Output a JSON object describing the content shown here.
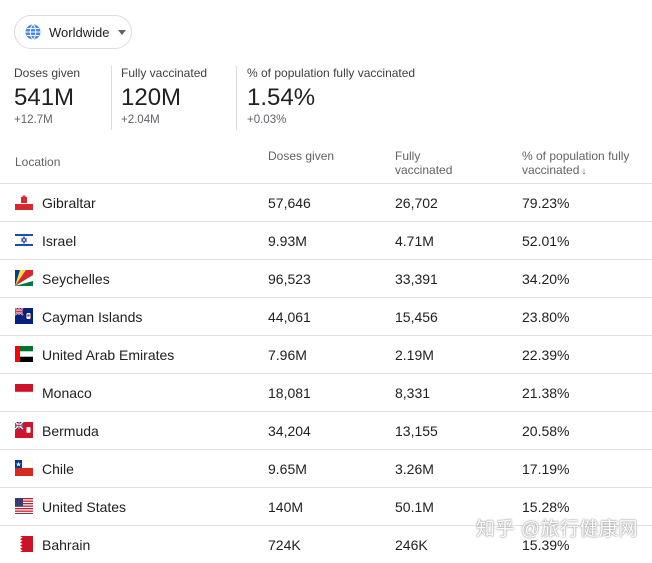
{
  "region_selector": {
    "label": "Worldwide",
    "icon": "globe-icon"
  },
  "stats": [
    {
      "label": "Doses given",
      "value": "541M",
      "change": "+12.7M"
    },
    {
      "label": "Fully vaccinated",
      "value": "120M",
      "change": "+2.04M"
    },
    {
      "label": "% of population fully vaccinated",
      "value": "1.54%",
      "change": "+0.03%"
    }
  ],
  "table": {
    "headers": {
      "location": "Location",
      "doses_given": "Doses given",
      "fully_vaccinated": "Fully vaccinated",
      "pct_fully_vaccinated": "% of population fully vaccinated",
      "sort_indicator": "↓"
    },
    "rows": [
      {
        "location": "Gibraltar",
        "flag": "gibraltar-flag-icon",
        "doses": "57,646",
        "fully": "26,702",
        "pct": "79.23%"
      },
      {
        "location": "Israel",
        "flag": "israel-flag-icon",
        "doses": "9.93M",
        "fully": "4.71M",
        "pct": "52.01%"
      },
      {
        "location": "Seychelles",
        "flag": "seychelles-flag-icon",
        "doses": "96,523",
        "fully": "33,391",
        "pct": "34.20%"
      },
      {
        "location": "Cayman Islands",
        "flag": "cayman-islands-flag-icon",
        "doses": "44,061",
        "fully": "15,456",
        "pct": "23.80%"
      },
      {
        "location": "United Arab Emirates",
        "flag": "uae-flag-icon",
        "doses": "7.96M",
        "fully": "2.19M",
        "pct": "22.39%"
      },
      {
        "location": "Monaco",
        "flag": "monaco-flag-icon",
        "doses": "18,081",
        "fully": "8,331",
        "pct": "21.38%"
      },
      {
        "location": "Bermuda",
        "flag": "bermuda-flag-icon",
        "doses": "34,204",
        "fully": "13,155",
        "pct": "20.58%"
      },
      {
        "location": "Chile",
        "flag": "chile-flag-icon",
        "doses": "9.65M",
        "fully": "3.26M",
        "pct": "17.19%"
      },
      {
        "location": "United States",
        "flag": "us-flag-icon",
        "doses": "140M",
        "fully": "50.1M",
        "pct": "15.28%"
      },
      {
        "location": "Bahrain",
        "flag": "bahrain-flag-icon",
        "doses": "724K",
        "fully": "246K",
        "pct": "15.39%"
      }
    ]
  },
  "watermark": "知乎 @旅行健康网"
}
